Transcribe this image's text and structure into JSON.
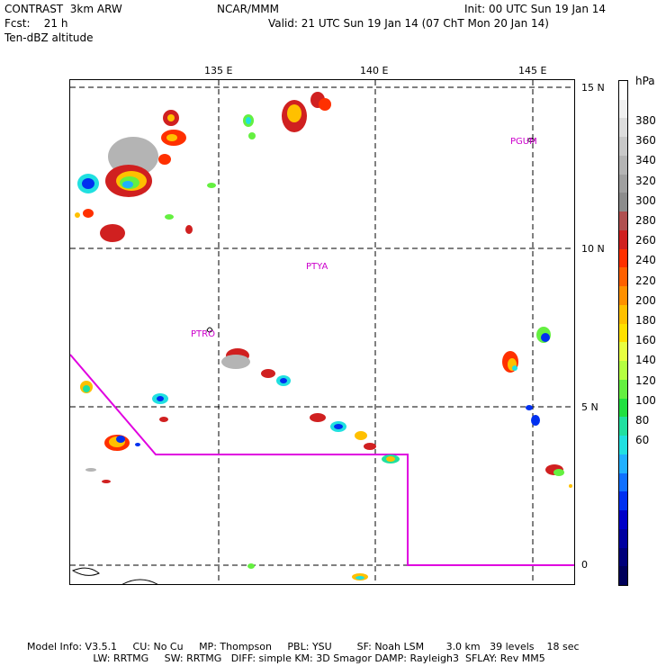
{
  "header": {
    "model": "CONTRAST  3km ARW",
    "fcst": "Fcst:    21 h",
    "field": "Ten-dBZ altitude",
    "center": "NCAR/MMM",
    "init": "Init: 00 UTC Sun 19 Jan 14",
    "valid": "Valid: 21 UTC Sun 19 Jan 14 (07 ChT Mon 20 Jan 14)"
  },
  "map": {
    "lon_labels": [
      "135 E",
      "140 E",
      "145 E"
    ],
    "lat_labels": [
      "15 N",
      "10 N",
      "5 N",
      "0"
    ],
    "stations": [
      "PGUM",
      "PTYA",
      "PTRO"
    ],
    "boundary_color": "#e000e0",
    "station_color": "#cc00cc"
  },
  "colorbar": {
    "unit": "hPa",
    "labels": [
      "380",
      "360",
      "340",
      "320",
      "300",
      "280",
      "260",
      "240",
      "220",
      "200",
      "180",
      "160",
      "140",
      "120",
      "100",
      "80",
      "60"
    ],
    "colors": [
      "#ffffff",
      "#f0f0f0",
      "#dcdcdc",
      "#c8c8c8",
      "#b4b4b4",
      "#a0a0a0",
      "#8c8c8c",
      "#b05050",
      "#d02020",
      "#ff3000",
      "#ff6000",
      "#ff9000",
      "#ffc000",
      "#ffe000",
      "#e8ff40",
      "#b4ff40",
      "#64f040",
      "#20e040",
      "#20e0a0",
      "#20e0e0",
      "#20b0ff",
      "#1070ff",
      "#0030f0",
      "#0000c8",
      "#0000a0",
      "#00007a",
      "#00005a"
    ]
  },
  "footer": {
    "line1": "Model Info: V3.5.1     CU: No Cu     MP: Thompson     PBL: YSU        SF: Noah LSM       3.0 km   39 levels    18 sec",
    "line2": "                     LW: RRTMG     SW: RRTMG   DIFF: simple KM: 3D Smagor DAMP: Rayleigh3  SFLAY: Rev MM5"
  }
}
